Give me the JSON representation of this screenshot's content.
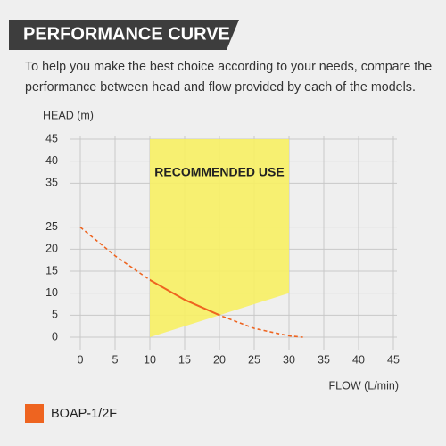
{
  "chart_data": {
    "type": "line",
    "title": "PERFORMANCE CURVE",
    "description": [
      "To help you make the best choice according to your needs, compare the",
      "performance between head and flow provided by each of the models."
    ],
    "y_label": "HEAD (m)",
    "x_label": "FLOW (L/min)",
    "xlim": [
      0,
      45
    ],
    "ylim": [
      0,
      45
    ],
    "xticks": [
      0,
      5,
      10,
      15,
      20,
      25,
      30,
      35,
      40,
      45
    ],
    "yticks": [
      0,
      5,
      10,
      15,
      20,
      25,
      35,
      40,
      45
    ],
    "grid": true,
    "region": {
      "label": "RECOMMENDED USE",
      "color": "#f7ef63",
      "x": [
        10,
        10,
        30,
        30
      ],
      "y": [
        0,
        45,
        45,
        10
      ]
    },
    "series": [
      {
        "name": "BOAP-1/2F",
        "color": "#ee6420",
        "x": [
          0,
          5,
          10,
          15,
          20,
          25,
          30,
          32
        ],
        "values": [
          25,
          18.5,
          13,
          8.5,
          5,
          2,
          0.3,
          0
        ]
      }
    ]
  }
}
